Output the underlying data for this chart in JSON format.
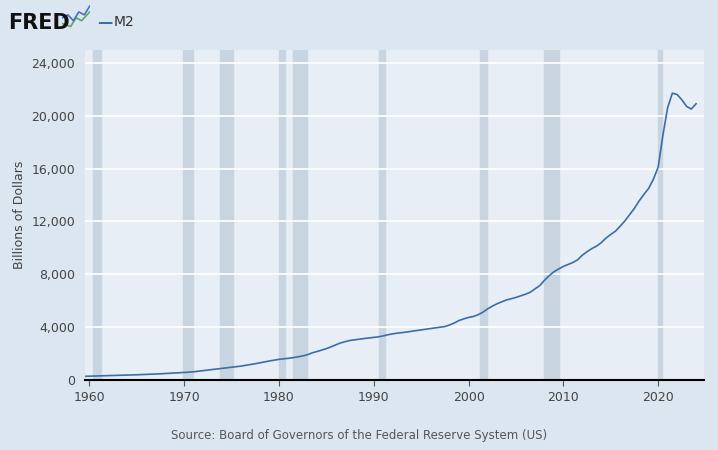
{
  "title": "M2",
  "ylabel": "Billions of Dollars",
  "source_text": "Source: Board of Governors of the Federal Reserve System (US)",
  "line_color": "#3a6ea8",
  "background_color": "#dce6f0",
  "plot_bg_color": "#e8eef5",
  "grid_color": "#ffffff",
  "recession_color": "#c8d4e0",
  "ylim": [
    0,
    25000
  ],
  "yticks": [
    0,
    4000,
    8000,
    12000,
    16000,
    20000,
    24000
  ],
  "xmin": 1959.5,
  "xmax": 2024.8,
  "xticks": [
    1960,
    1970,
    1980,
    1990,
    2000,
    2010,
    2020
  ],
  "recession_bands": [
    [
      1960.33,
      1961.17
    ],
    [
      1969.92,
      1970.92
    ],
    [
      1973.75,
      1975.17
    ],
    [
      1980.0,
      1980.58
    ],
    [
      1981.5,
      1982.92
    ],
    [
      1990.58,
      1991.17
    ],
    [
      2001.17,
      2001.92
    ],
    [
      2007.92,
      2009.5
    ],
    [
      2020.0,
      2020.42
    ]
  ],
  "data": {
    "years": [
      1959.5,
      1960.0,
      1960.5,
      1961.0,
      1961.5,
      1962.0,
      1962.5,
      1963.0,
      1963.5,
      1964.0,
      1964.5,
      1965.0,
      1965.5,
      1966.0,
      1966.5,
      1967.0,
      1967.5,
      1968.0,
      1968.5,
      1969.0,
      1969.5,
      1970.0,
      1970.5,
      1971.0,
      1971.5,
      1972.0,
      1972.5,
      1973.0,
      1973.5,
      1974.0,
      1974.5,
      1975.0,
      1975.5,
      1976.0,
      1976.5,
      1977.0,
      1977.5,
      1978.0,
      1978.5,
      1979.0,
      1979.5,
      1980.0,
      1980.5,
      1981.0,
      1981.5,
      1982.0,
      1982.5,
      1983.0,
      1983.5,
      1984.0,
      1984.5,
      1985.0,
      1985.5,
      1986.0,
      1986.5,
      1987.0,
      1987.5,
      1988.0,
      1988.5,
      1989.0,
      1989.5,
      1990.0,
      1990.5,
      1991.0,
      1991.5,
      1992.0,
      1992.5,
      1993.0,
      1993.5,
      1994.0,
      1994.5,
      1995.0,
      1995.5,
      1996.0,
      1996.5,
      1997.0,
      1997.5,
      1998.0,
      1998.5,
      1999.0,
      1999.5,
      2000.0,
      2000.5,
      2001.0,
      2001.5,
      2002.0,
      2002.5,
      2003.0,
      2003.5,
      2004.0,
      2004.5,
      2005.0,
      2005.5,
      2006.0,
      2006.5,
      2007.0,
      2007.5,
      2008.0,
      2008.5,
      2009.0,
      2009.5,
      2010.0,
      2010.5,
      2011.0,
      2011.5,
      2012.0,
      2012.5,
      2013.0,
      2013.5,
      2014.0,
      2014.5,
      2015.0,
      2015.5,
      2016.0,
      2016.5,
      2017.0,
      2017.5,
      2018.0,
      2018.5,
      2019.0,
      2019.5,
      2020.0,
      2020.5,
      2021.0,
      2021.5,
      2022.0,
      2022.5,
      2023.0,
      2023.5,
      2024.0
    ],
    "values": [
      298,
      308,
      311,
      320,
      330,
      340,
      350,
      362,
      374,
      387,
      400,
      413,
      427,
      441,
      455,
      472,
      488,
      507,
      527,
      548,
      566,
      584,
      610,
      643,
      685,
      725,
      770,
      810,
      850,
      890,
      935,
      975,
      1020,
      1070,
      1130,
      1185,
      1250,
      1320,
      1390,
      1460,
      1520,
      1580,
      1620,
      1660,
      1710,
      1770,
      1840,
      1930,
      2070,
      2170,
      2280,
      2390,
      2530,
      2680,
      2820,
      2920,
      3010,
      3060,
      3105,
      3155,
      3195,
      3240,
      3285,
      3355,
      3440,
      3510,
      3560,
      3600,
      3645,
      3705,
      3755,
      3810,
      3850,
      3910,
      3960,
      4010,
      4060,
      4180,
      4330,
      4520,
      4640,
      4750,
      4820,
      4950,
      5140,
      5390,
      5600,
      5780,
      5930,
      6070,
      6160,
      6260,
      6380,
      6500,
      6650,
      6900,
      7150,
      7550,
      7900,
      8200,
      8410,
      8600,
      8750,
      8900,
      9100,
      9450,
      9720,
      9950,
      10140,
      10400,
      10750,
      11020,
      11270,
      11650,
      12050,
      12520,
      13000,
      13560,
      14050,
      14500,
      15200,
      16100,
      18500,
      20600,
      21700,
      21600,
      21200,
      20700,
      20500,
      20900
    ]
  }
}
